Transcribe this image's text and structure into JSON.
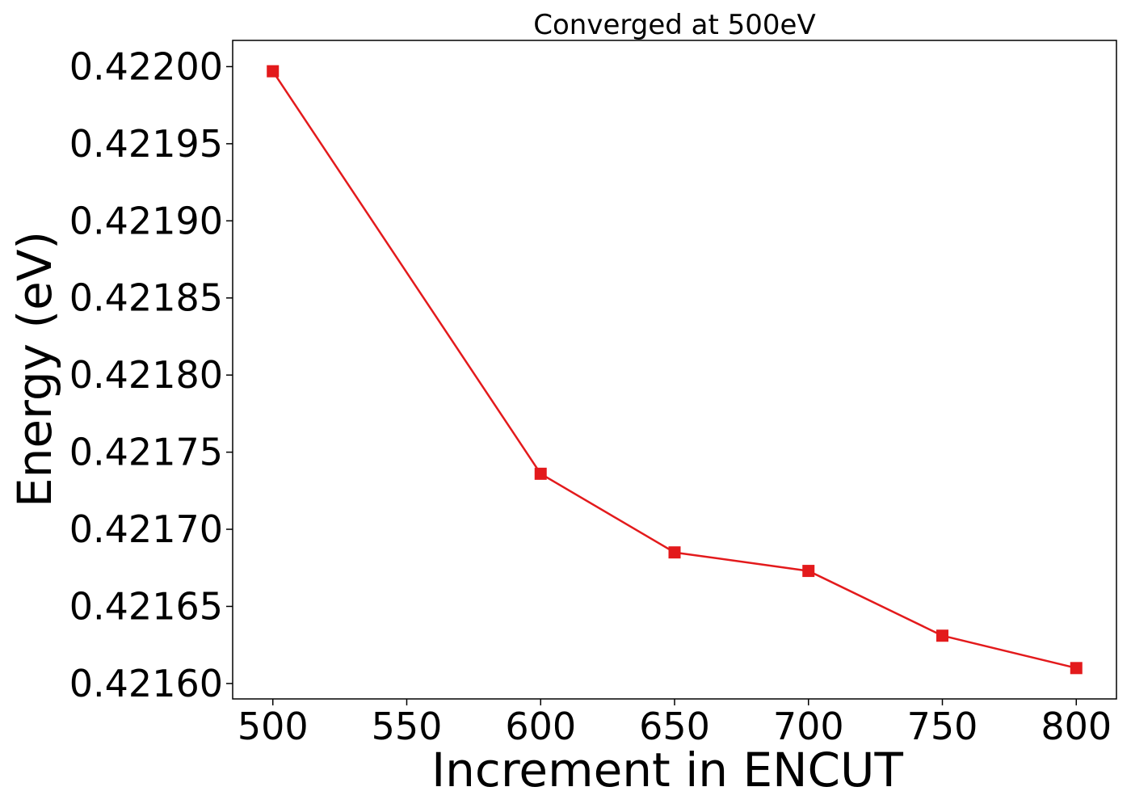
{
  "chart_data": {
    "type": "line",
    "title": "Converged at 500eV",
    "xlabel": "Increment in ENCUT",
    "ylabel": "Energy (eV)",
    "x": [
      500,
      600,
      650,
      700,
      750,
      800
    ],
    "series": [
      {
        "values": [
          0.421997,
          0.421736,
          0.421685,
          0.421673,
          0.421631,
          0.42161
        ],
        "color": "#e31a1c",
        "marker": "square"
      }
    ],
    "xlim": [
      485,
      815
    ],
    "ylim": [
      0.42159,
      0.422017
    ],
    "xticks": [
      500,
      550,
      600,
      650,
      700,
      750,
      800
    ],
    "xtick_labels": [
      "500",
      "550",
      "600",
      "650",
      "700",
      "750",
      "800"
    ],
    "yticks": [
      0.4216,
      0.42165,
      0.4217,
      0.42175,
      0.4218,
      0.42185,
      0.4219,
      0.42195,
      0.422
    ],
    "ytick_labels": [
      "0.42160",
      "0.42165",
      "0.42170",
      "0.42175",
      "0.42180",
      "0.42185",
      "0.42190",
      "0.42195",
      "0.42200"
    ],
    "grid": false,
    "legend": "none"
  }
}
